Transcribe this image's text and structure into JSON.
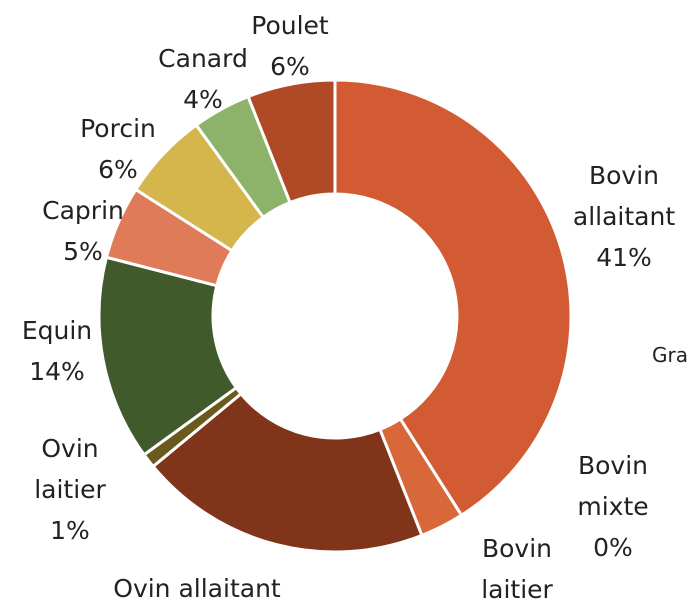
{
  "chart_data": {
    "type": "donut",
    "categories": [
      "Bovin allaitant",
      "Bovin mixte",
      "Bovin laitier",
      "Ovin allaitant",
      "Ovin laitier",
      "Equin",
      "Caprin",
      "Porcin",
      "Canard",
      "Poulet"
    ],
    "values": [
      41,
      0,
      3,
      20,
      1,
      14,
      5,
      6,
      4,
      6
    ],
    "value_labels": [
      "41%",
      "0%",
      null,
      null,
      "1%",
      "14%",
      "5%",
      "6%",
      "4%",
      "6%"
    ],
    "colors": [
      "#d35b33",
      "#b89a3c",
      "#d8673a",
      "#80341a",
      "#6b5a1e",
      "#405a2c",
      "#e07b5a",
      "#d4b64c",
      "#8db36a",
      "#b04a26"
    ],
    "annotation": "Gra"
  }
}
